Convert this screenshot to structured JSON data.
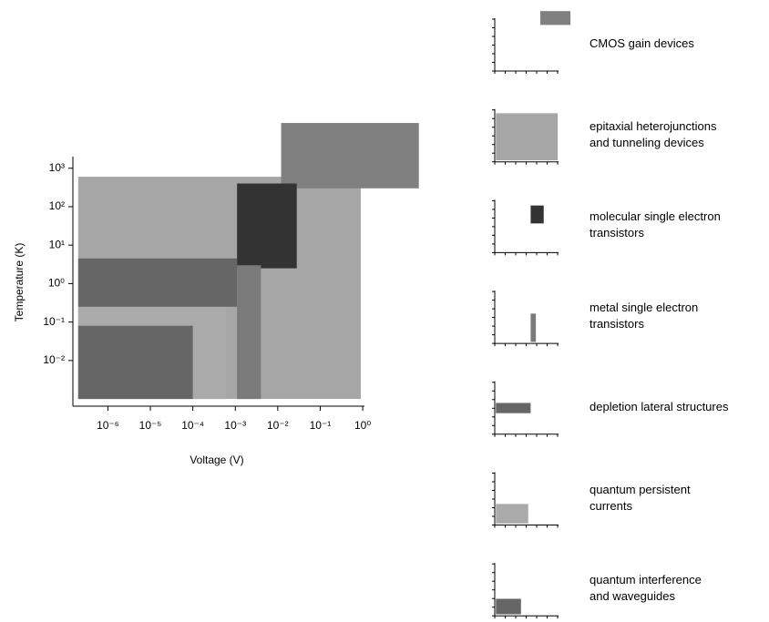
{
  "chart_data": {
    "type": "range",
    "x_label": "Voltage (V)",
    "y_label": "Temperature (K)",
    "log_x": true,
    "log_y": true,
    "xlim": [
      1.5e-07,
      1.1
    ],
    "ylim": [
      0.00065,
      2000
    ],
    "xticks": [
      {
        "value": 1e-06,
        "label": "10⁻⁶"
      },
      {
        "value": 1e-05,
        "label": "10⁻⁵"
      },
      {
        "value": 0.0001,
        "label": "10⁻⁴"
      },
      {
        "value": 0.001,
        "label": "10⁻³"
      },
      {
        "value": 0.01,
        "label": "10⁻²"
      },
      {
        "value": 0.1,
        "label": "10⁻¹"
      },
      {
        "value": 1,
        "label": "10⁰"
      }
    ],
    "yticks": [
      {
        "value": 0.01,
        "label": "10⁻²"
      },
      {
        "value": 0.1,
        "label": "10⁻¹"
      },
      {
        "value": 1,
        "label": "10⁰"
      },
      {
        "value": 10,
        "label": "10¹"
      },
      {
        "value": 100,
        "label": "10²"
      },
      {
        "value": 1000,
        "label": "10³"
      }
    ],
    "series": [
      {
        "name": "CMOS gain devices",
        "color": "#808080",
        "x": [
          0.012,
          21
        ],
        "y": [
          300,
          15000
        ]
      },
      {
        "name": "epitaxial heterojunctions\nand tunneling devices",
        "color": "#a6a6a6",
        "x": [
          2e-07,
          0.9
        ],
        "y": [
          0.001,
          600
        ]
      },
      {
        "name": "molecular single electron\ntransistors",
        "color": "#333333",
        "x": [
          0.0011,
          0.028
        ],
        "y": [
          2.5,
          400
        ]
      },
      {
        "name": "metal single electron\ntransistors",
        "color": "#7a7a7a",
        "x": [
          0.0011,
          0.004
        ],
        "y": [
          0.001,
          3
        ]
      },
      {
        "name": "depletion lateral structures",
        "color": "#666666",
        "x": [
          2e-07,
          0.0011
        ],
        "y": [
          0.25,
          4.5
        ]
      },
      {
        "name": "quantum persistent\ncurrents",
        "color": "#aaaaaa",
        "x": [
          2e-07,
          0.0006
        ],
        "y": [
          0.001,
          0.25
        ]
      },
      {
        "name": "quantum interference\nand waveguides",
        "color": "#666666",
        "x": [
          2e-07,
          0.0001
        ],
        "y": [
          0.001,
          0.08
        ]
      }
    ]
  }
}
